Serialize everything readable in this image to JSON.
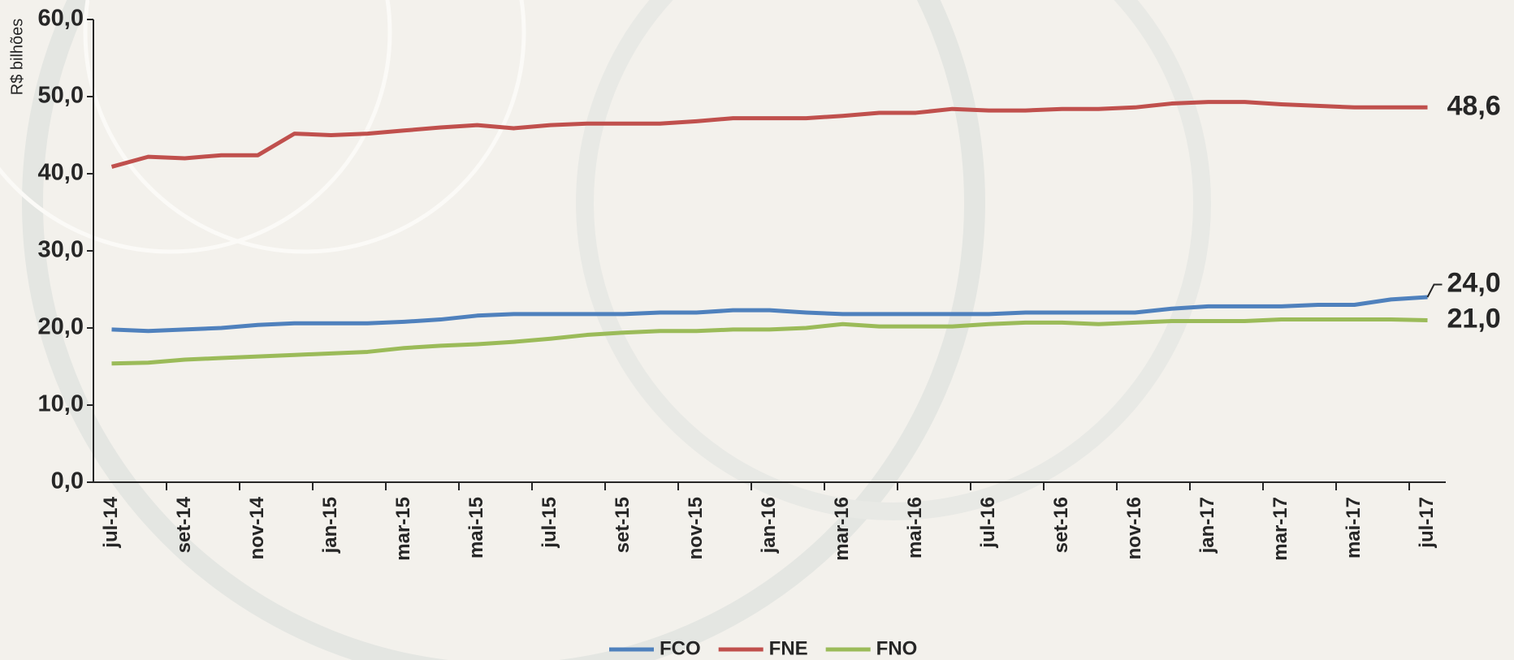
{
  "chart_data": {
    "type": "line",
    "y_label": "R$ bilhões",
    "categories": [
      "jul-14",
      null,
      "set-14",
      null,
      "nov-14",
      null,
      "jan-15",
      null,
      "mar-15",
      null,
      "mai-15",
      null,
      "jul-15",
      null,
      "set-15",
      null,
      "nov-15",
      null,
      "jan-16",
      null,
      "mar-16",
      null,
      "mai-16",
      null,
      "jul-16",
      null,
      "set-16",
      null,
      "nov-16",
      null,
      "jan-17",
      null,
      "mar-17",
      null,
      "mai-17",
      null,
      "jul-17"
    ],
    "series": [
      {
        "name": "FCO",
        "color": "#4f81bd",
        "values": [
          19.8,
          19.6,
          19.8,
          20.0,
          20.4,
          20.6,
          20.6,
          20.6,
          20.8,
          21.1,
          21.6,
          21.8,
          21.8,
          21.8,
          21.8,
          22.0,
          22.0,
          22.3,
          22.3,
          22.0,
          21.8,
          21.8,
          21.8,
          21.8,
          21.8,
          22.0,
          22.0,
          22.0,
          22.0,
          22.5,
          22.8,
          22.8,
          22.8,
          23.0,
          23.0,
          23.7,
          24.0
        ],
        "value_labels": [
          null,
          null,
          null,
          null,
          null,
          null,
          null,
          null,
          null,
          null,
          null,
          null,
          null,
          null,
          null,
          null,
          null,
          null,
          null,
          null,
          null,
          null,
          null,
          null,
          null,
          null,
          null,
          null,
          null,
          null,
          null,
          null,
          null,
          null,
          null,
          null,
          "24,0"
        ]
      },
      {
        "name": "FNE",
        "color": "#c0504d",
        "values": [
          40.9,
          42.2,
          42.0,
          42.4,
          42.4,
          45.2,
          45.0,
          45.2,
          45.6,
          46.0,
          46.3,
          45.9,
          46.3,
          46.5,
          46.5,
          46.5,
          46.8,
          47.2,
          47.2,
          47.2,
          47.5,
          47.9,
          47.9,
          48.4,
          48.2,
          48.2,
          48.4,
          48.4,
          48.6,
          49.1,
          49.3,
          49.3,
          49.0,
          48.8,
          48.6,
          48.6,
          48.6
        ],
        "value_labels": [
          null,
          null,
          null,
          null,
          null,
          null,
          null,
          null,
          null,
          null,
          null,
          null,
          null,
          null,
          null,
          null,
          null,
          null,
          null,
          null,
          null,
          null,
          null,
          null,
          null,
          null,
          null,
          null,
          null,
          null,
          null,
          null,
          null,
          null,
          null,
          null,
          "48,6"
        ]
      },
      {
        "name": "FNO",
        "color": "#9bbb59",
        "values": [
          15.4,
          15.5,
          15.9,
          16.1,
          16.3,
          16.5,
          16.7,
          16.9,
          17.4,
          17.7,
          17.9,
          18.2,
          18.6,
          19.1,
          19.4,
          19.6,
          19.6,
          19.8,
          19.8,
          20.0,
          20.5,
          20.2,
          20.2,
          20.2,
          20.5,
          20.7,
          20.7,
          20.5,
          20.7,
          20.9,
          20.9,
          20.9,
          21.1,
          21.1,
          21.1,
          21.1,
          21.0
        ],
        "value_labels": [
          null,
          null,
          null,
          null,
          null,
          null,
          null,
          null,
          null,
          null,
          null,
          null,
          null,
          null,
          null,
          null,
          null,
          null,
          null,
          null,
          null,
          null,
          null,
          null,
          null,
          null,
          null,
          null,
          null,
          null,
          null,
          null,
          null,
          null,
          null,
          null,
          "21,0"
        ]
      }
    ],
    "ylim": [
      0,
      60
    ],
    "yticks": [
      {
        "value": 0,
        "label": "0,0"
      },
      {
        "value": 10,
        "label": "10,0"
      },
      {
        "value": 20,
        "label": "20,0"
      },
      {
        "value": 30,
        "label": "30,0"
      },
      {
        "value": 40,
        "label": "40,0"
      },
      {
        "value": 50,
        "label": "50,0"
      },
      {
        "value": 60,
        "label": "60,0"
      }
    ],
    "grid": false,
    "legend": "bottom"
  }
}
